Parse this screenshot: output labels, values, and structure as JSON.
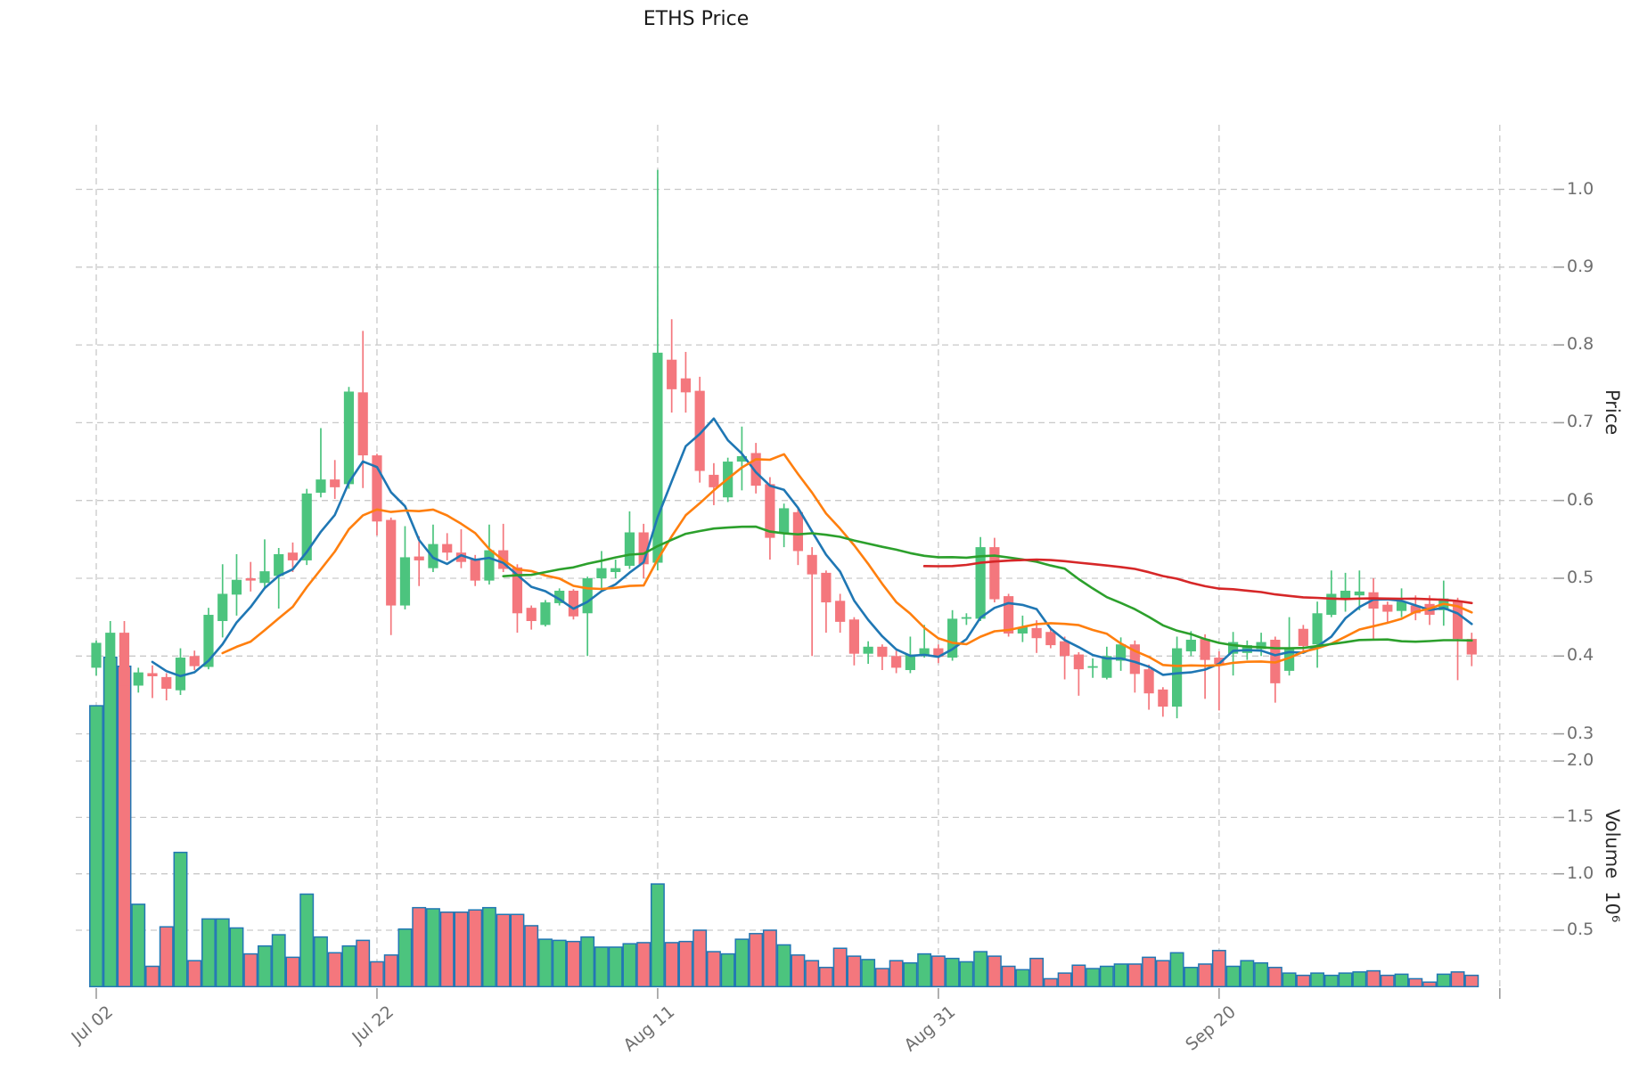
{
  "title": "ETHS Price",
  "price_axis": {
    "label": "Price",
    "ticks": [
      0.3,
      0.4,
      0.5,
      0.6,
      0.7,
      0.8,
      0.9,
      1.0
    ]
  },
  "volume_axis": {
    "label": "Volume",
    "unit": "10⁶",
    "ticks": [
      0.5,
      1.0,
      1.5,
      2.0
    ]
  },
  "x_axis": {
    "ticks": [
      {
        "label": "Jul 02",
        "day": 0
      },
      {
        "label": "Jul 22",
        "day": 20
      },
      {
        "label": "Aug 11",
        "day": 40
      },
      {
        "label": "Aug 31",
        "day": 60
      },
      {
        "label": "Sep 20",
        "day": 80
      }
    ],
    "unlabeled_gridline_days": [
      100
    ]
  },
  "chart_data": {
    "type": "candlestick",
    "title": "ETHS Price",
    "ylabel": "Price",
    "ylabel_lower": "Volume 10⁶",
    "price_ylim": [
      0.296,
      1.083
    ],
    "volume_ylim_millions": [
      0,
      3.05
    ],
    "grid": "dashed",
    "legend_position": "none",
    "dates": [
      "Jul 02",
      "Jul 03",
      "Jul 04",
      "Jul 05",
      "Jul 06",
      "Jul 07",
      "Jul 08",
      "Jul 09",
      "Jul 10",
      "Jul 11",
      "Jul 12",
      "Jul 13",
      "Jul 14",
      "Jul 15",
      "Jul 16",
      "Jul 17",
      "Jul 18",
      "Jul 19",
      "Jul 20",
      "Jul 21",
      "Jul 22",
      "Jul 23",
      "Jul 24",
      "Jul 25",
      "Jul 26",
      "Jul 27",
      "Jul 28",
      "Jul 29",
      "Jul 30",
      "Jul 31",
      "Aug 01",
      "Aug 02",
      "Aug 03",
      "Aug 04",
      "Aug 05",
      "Aug 06",
      "Aug 07",
      "Aug 08",
      "Aug 09",
      "Aug 10",
      "Aug 11",
      "Aug 12",
      "Aug 13",
      "Aug 14",
      "Aug 15",
      "Aug 16",
      "Aug 17",
      "Aug 18",
      "Aug 19",
      "Aug 20",
      "Aug 21",
      "Aug 22",
      "Aug 23",
      "Aug 24",
      "Aug 25",
      "Aug 26",
      "Aug 27",
      "Aug 28",
      "Aug 29",
      "Aug 30",
      "Aug 31",
      "Sep 01",
      "Sep 02",
      "Sep 03",
      "Sep 04",
      "Sep 05",
      "Sep 06",
      "Sep 07",
      "Sep 08",
      "Sep 09",
      "Sep 10",
      "Sep 11",
      "Sep 12",
      "Sep 13",
      "Sep 14",
      "Sep 15",
      "Sep 16",
      "Sep 17",
      "Sep 18",
      "Sep 19",
      "Sep 20",
      "Sep 21",
      "Sep 22",
      "Sep 23",
      "Sep 24",
      "Sep 25",
      "Sep 26",
      "Sep 27",
      "Sep 28",
      "Sep 29",
      "Sep 30",
      "Oct 01",
      "Oct 02",
      "Oct 03",
      "Oct 04",
      "Oct 05",
      "Oct 06",
      "Oct 07",
      "Oct 08"
    ],
    "open": [
      0.385,
      0.393,
      0.43,
      0.362,
      0.378,
      0.373,
      0.356,
      0.4,
      0.386,
      0.445,
      0.479,
      0.5,
      0.494,
      0.503,
      0.533,
      0.523,
      0.61,
      0.627,
      0.621,
      0.739,
      0.658,
      0.575,
      0.465,
      0.528,
      0.513,
      0.544,
      0.533,
      0.524,
      0.497,
      0.536,
      0.514,
      0.462,
      0.44,
      0.468,
      0.484,
      0.455,
      0.5,
      0.508,
      0.516,
      0.559,
      0.52,
      0.781,
      0.757,
      0.741,
      0.633,
      0.604,
      0.65,
      0.661,
      0.621,
      0.558,
      0.585,
      0.53,
      0.507,
      0.471,
      0.447,
      0.403,
      0.412,
      0.4,
      0.382,
      0.402,
      0.41,
      0.398,
      0.448,
      0.448,
      0.54,
      0.477,
      0.429,
      0.436,
      0.431,
      0.419,
      0.402,
      0.385,
      0.372,
      0.394,
      0.415,
      0.383,
      0.357,
      0.335,
      0.406,
      0.422,
      0.398,
      0.403,
      0.404,
      0.409,
      0.421,
      0.381,
      0.435,
      0.415,
      0.453,
      0.474,
      0.478,
      0.482,
      0.466,
      0.458,
      0.465,
      0.467,
      0.459,
      0.47,
      0.422
    ],
    "high": [
      0.42,
      0.445,
      0.445,
      0.385,
      0.388,
      0.378,
      0.41,
      0.407,
      0.462,
      0.518,
      0.531,
      0.521,
      0.55,
      0.539,
      0.546,
      0.615,
      0.693,
      0.652,
      0.746,
      0.818,
      0.66,
      0.578,
      0.567,
      0.554,
      0.569,
      0.558,
      0.563,
      0.53,
      0.569,
      0.57,
      0.518,
      0.465,
      0.472,
      0.487,
      0.486,
      0.502,
      0.535,
      0.524,
      0.586,
      0.57,
      1.025,
      0.833,
      0.791,
      0.759,
      0.648,
      0.655,
      0.695,
      0.674,
      0.63,
      0.596,
      0.59,
      0.54,
      0.51,
      0.48,
      0.45,
      0.419,
      0.415,
      0.407,
      0.425,
      0.44,
      0.415,
      0.459,
      0.455,
      0.553,
      0.552,
      0.48,
      0.452,
      0.446,
      0.435,
      0.425,
      0.405,
      0.397,
      0.412,
      0.424,
      0.42,
      0.389,
      0.36,
      0.425,
      0.432,
      0.428,
      0.406,
      0.431,
      0.42,
      0.43,
      0.425,
      0.45,
      0.44,
      0.47,
      0.51,
      0.507,
      0.51,
      0.5,
      0.47,
      0.487,
      0.478,
      0.478,
      0.497,
      0.475,
      0.43
    ],
    "low": [
      0.375,
      0.39,
      0.355,
      0.353,
      0.346,
      0.343,
      0.35,
      0.382,
      0.383,
      0.424,
      0.452,
      0.483,
      0.488,
      0.461,
      0.508,
      0.517,
      0.604,
      0.602,
      0.615,
      0.616,
      0.555,
      0.427,
      0.46,
      0.49,
      0.508,
      0.523,
      0.513,
      0.49,
      0.492,
      0.508,
      0.43,
      0.434,
      0.438,
      0.465,
      0.447,
      0.4,
      0.484,
      0.5,
      0.512,
      0.5,
      0.51,
      0.713,
      0.713,
      0.623,
      0.594,
      0.598,
      0.613,
      0.609,
      0.524,
      0.54,
      0.517,
      0.4,
      0.43,
      0.43,
      0.388,
      0.39,
      0.382,
      0.378,
      0.378,
      0.398,
      0.391,
      0.394,
      0.44,
      0.445,
      0.469,
      0.425,
      0.418,
      0.404,
      0.41,
      0.37,
      0.349,
      0.372,
      0.37,
      0.381,
      0.353,
      0.331,
      0.322,
      0.32,
      0.4,
      0.345,
      0.33,
      0.375,
      0.395,
      0.4,
      0.34,
      0.375,
      0.405,
      0.385,
      0.45,
      0.457,
      0.459,
      0.422,
      0.444,
      0.45,
      0.446,
      0.44,
      0.439,
      0.369,
      0.387
    ],
    "close": [
      0.417,
      0.43,
      0.362,
      0.379,
      0.374,
      0.358,
      0.398,
      0.387,
      0.453,
      0.48,
      0.498,
      0.497,
      0.509,
      0.531,
      0.523,
      0.609,
      0.627,
      0.617,
      0.74,
      0.658,
      0.573,
      0.465,
      0.527,
      0.523,
      0.544,
      0.533,
      0.521,
      0.497,
      0.536,
      0.512,
      0.455,
      0.445,
      0.469,
      0.484,
      0.451,
      0.5,
      0.513,
      0.513,
      0.559,
      0.518,
      0.79,
      0.743,
      0.739,
      0.638,
      0.617,
      0.65,
      0.657,
      0.619,
      0.552,
      0.59,
      0.535,
      0.505,
      0.469,
      0.444,
      0.403,
      0.412,
      0.399,
      0.385,
      0.402,
      0.41,
      0.399,
      0.448,
      0.45,
      0.54,
      0.473,
      0.429,
      0.437,
      0.423,
      0.414,
      0.4,
      0.383,
      0.387,
      0.4,
      0.415,
      0.377,
      0.352,
      0.335,
      0.41,
      0.421,
      0.395,
      0.39,
      0.418,
      0.414,
      0.418,
      0.365,
      0.411,
      0.413,
      0.455,
      0.48,
      0.484,
      0.483,
      0.461,
      0.457,
      0.47,
      0.455,
      0.453,
      0.474,
      0.422,
      0.402
    ],
    "volume_millions": [
      2.49,
      2.92,
      2.84,
      0.73,
      0.18,
      0.53,
      1.19,
      0.23,
      0.6,
      0.6,
      0.52,
      0.29,
      0.36,
      0.46,
      0.26,
      0.82,
      0.44,
      0.3,
      0.36,
      0.41,
      0.22,
      0.28,
      0.51,
      0.7,
      0.69,
      0.66,
      0.66,
      0.68,
      0.7,
      0.64,
      0.64,
      0.54,
      0.42,
      0.41,
      0.4,
      0.44,
      0.35,
      0.35,
      0.38,
      0.39,
      0.91,
      0.39,
      0.4,
      0.5,
      0.31,
      0.29,
      0.42,
      0.47,
      0.5,
      0.37,
      0.28,
      0.23,
      0.17,
      0.34,
      0.27,
      0.24,
      0.16,
      0.23,
      0.21,
      0.29,
      0.27,
      0.25,
      0.22,
      0.31,
      0.27,
      0.18,
      0.15,
      0.25,
      0.07,
      0.12,
      0.19,
      0.16,
      0.18,
      0.2,
      0.2,
      0.26,
      0.23,
      0.3,
      0.17,
      0.2,
      0.32,
      0.18,
      0.23,
      0.21,
      0.17,
      0.12,
      0.1,
      0.12,
      0.1,
      0.12,
      0.13,
      0.14,
      0.1,
      0.11,
      0.07,
      0.04,
      0.11,
      0.13,
      0.1
    ],
    "moving_averages": {
      "source": "close",
      "windows": [
        5,
        10,
        30,
        60
      ],
      "colors": [
        "#1f77b4",
        "#ff7f0e",
        "#2ca02c",
        "#d62728"
      ]
    },
    "colors": {
      "candle_up": "#4cc47e",
      "candle_down": "#f4777d",
      "volume_bar_edge": "#2277b4",
      "grid": "#c9c9c9",
      "tick_mark": "#9d9d9d",
      "tick_text": "#6f6f6f",
      "title_text": "#1a1a1a"
    }
  }
}
